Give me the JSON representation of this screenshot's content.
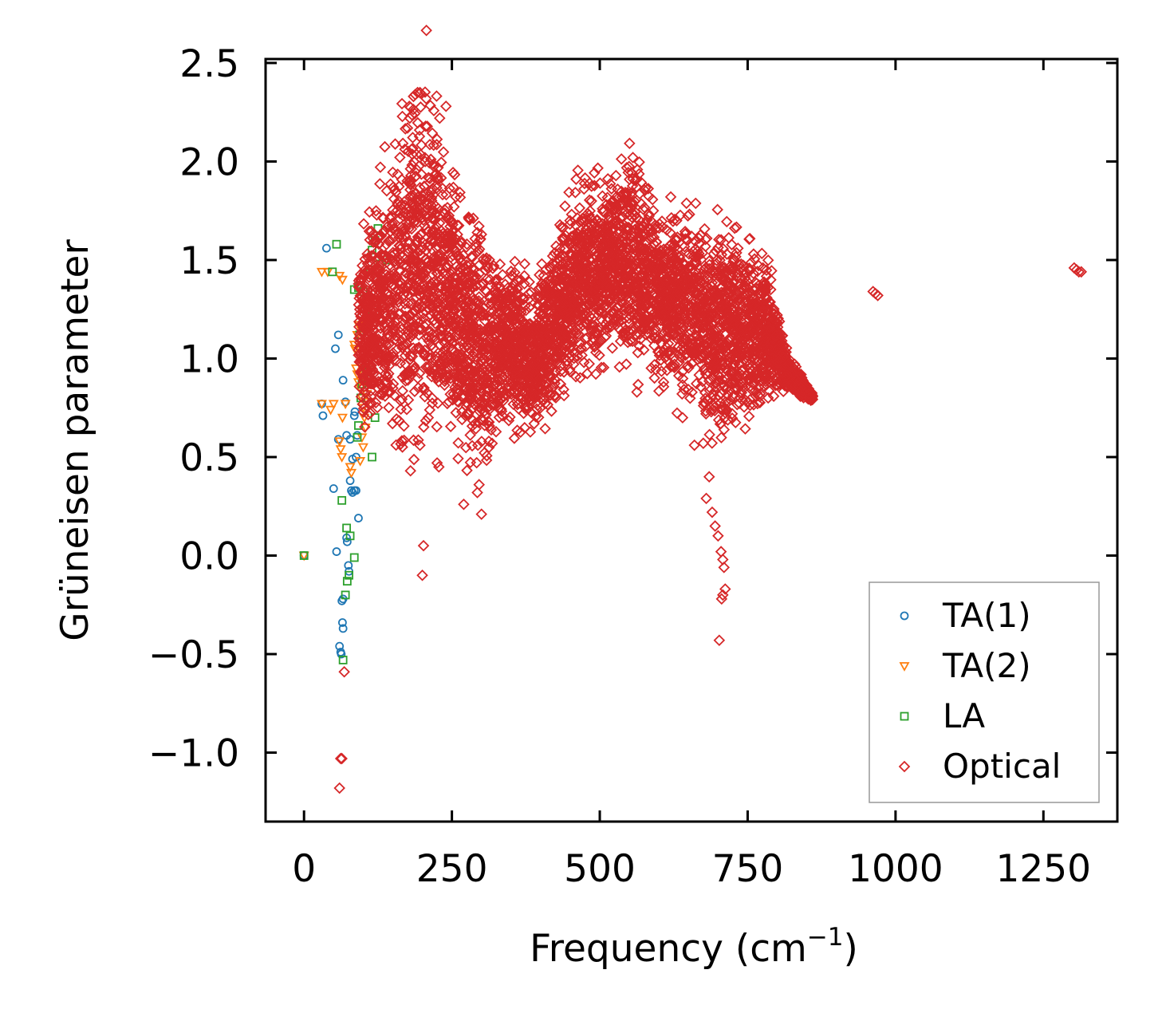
{
  "chart_data": {
    "type": "scatter",
    "title": "",
    "xlabel": "Frequency (cm",
    "xlabel_sup": "−1",
    "xlabel_close": ")",
    "ylabel": "Grüneisen parameter",
    "xlim": [
      -65,
      1375
    ],
    "ylim": [
      -1.35,
      2.52
    ],
    "xticks": [
      0,
      250,
      500,
      750,
      1000,
      1250
    ],
    "xtick_labels": [
      "0",
      "250",
      "500",
      "750",
      "1000",
      "1250"
    ],
    "yticks": [
      -1.0,
      -0.5,
      0.0,
      0.5,
      1.0,
      1.5,
      2.0,
      2.5
    ],
    "ytick_labels": [
      "−1.0",
      "−0.5",
      "0.0",
      "0.5",
      "1.0",
      "1.5",
      "2.0",
      "2.5"
    ],
    "grid": false,
    "legend": "lower-right",
    "series": [
      {
        "name": "TA(1)",
        "marker": "circle",
        "color": "#1f77b4",
        "points": [
          [
            0,
            0
          ],
          [
            38,
            1.56
          ],
          [
            53,
            1.05
          ],
          [
            58,
            1.12
          ],
          [
            30,
            0.77
          ],
          [
            32,
            0.71
          ],
          [
            58,
            0.59
          ],
          [
            66,
            0.89
          ],
          [
            50,
            0.34
          ],
          [
            55,
            0.02
          ],
          [
            78,
            0.38
          ],
          [
            80,
            0.33
          ],
          [
            82,
            0.32
          ],
          [
            85,
            0.33
          ],
          [
            88,
            0.33
          ],
          [
            70,
            0.78
          ],
          [
            72,
            0.61
          ],
          [
            78,
            0.59
          ],
          [
            85,
            0.71
          ],
          [
            86,
            0.73
          ],
          [
            72,
            0.09
          ],
          [
            73,
            0.07
          ],
          [
            75,
            -0.05
          ],
          [
            76,
            -0.08
          ],
          [
            66,
            -0.22
          ],
          [
            64,
            -0.23
          ],
          [
            65,
            -0.34
          ],
          [
            66,
            -0.37
          ],
          [
            60,
            -0.46
          ],
          [
            62,
            -0.49
          ],
          [
            63,
            -0.5
          ],
          [
            82,
            0.49
          ],
          [
            88,
            0.5
          ],
          [
            90,
            0.61
          ],
          [
            92,
            0.19
          ]
        ]
      },
      {
        "name": "TA(2)",
        "marker": "triangle-down",
        "color": "#ff7f0e",
        "points": [
          [
            0,
            0
          ],
          [
            30,
            1.44
          ],
          [
            40,
            1.44
          ],
          [
            60,
            1.42
          ],
          [
            65,
            1.4
          ],
          [
            30,
            0.77
          ],
          [
            45,
            0.74
          ],
          [
            50,
            0.77
          ],
          [
            65,
            0.7
          ],
          [
            70,
            0.77
          ],
          [
            85,
            1.07
          ],
          [
            86,
            1.05
          ],
          [
            90,
            1.12
          ],
          [
            92,
            1.17
          ],
          [
            88,
            0.95
          ],
          [
            90,
            0.92
          ],
          [
            92,
            0.88
          ],
          [
            95,
            0.85
          ],
          [
            98,
            0.8
          ],
          [
            100,
            0.75
          ],
          [
            102,
            0.7
          ],
          [
            104,
            0.65
          ],
          [
            98,
            0.6
          ],
          [
            100,
            0.55
          ],
          [
            95,
            0.48
          ],
          [
            60,
            0.58
          ],
          [
            62,
            0.54
          ],
          [
            64,
            0.5
          ],
          [
            78,
            0.45
          ],
          [
            80,
            0.42
          ],
          [
            104,
            0.88
          ],
          [
            106,
            0.82
          ],
          [
            108,
            0.78
          ]
        ]
      },
      {
        "name": "LA",
        "marker": "square",
        "color": "#2ca02c",
        "points": [
          [
            0,
            0
          ],
          [
            55,
            1.58
          ],
          [
            48,
            1.44
          ],
          [
            85,
            1.35
          ],
          [
            92,
            1.36
          ],
          [
            95,
            1.37
          ],
          [
            100,
            1.34
          ],
          [
            105,
            1.3
          ],
          [
            108,
            1.25
          ],
          [
            112,
            1.45
          ],
          [
            115,
            1.55
          ],
          [
            120,
            1.6
          ],
          [
            125,
            1.66
          ],
          [
            128,
            1.48
          ],
          [
            132,
            1.4
          ],
          [
            135,
            1.52
          ],
          [
            140,
            1.5
          ],
          [
            118,
            1.1
          ],
          [
            114,
            1.08
          ],
          [
            110,
            0.97
          ],
          [
            108,
            0.93
          ],
          [
            105,
            0.95
          ],
          [
            100,
            0.9
          ],
          [
            98,
            0.87
          ],
          [
            96,
            0.8
          ],
          [
            120,
            0.7
          ],
          [
            115,
            0.5
          ],
          [
            94,
            1.12
          ],
          [
            64,
            0.28
          ],
          [
            72,
            0.14
          ],
          [
            78,
            0.1
          ],
          [
            85,
            -0.01
          ],
          [
            76,
            -0.1
          ],
          [
            73,
            -0.13
          ],
          [
            70,
            -0.2
          ],
          [
            66,
            -0.53
          ],
          [
            90,
            0.6
          ],
          [
            92,
            0.66
          ]
        ]
      },
      {
        "name": "Optical",
        "marker": "diamond",
        "color": "#d62728",
        "band": [
          [
            92,
            1.15,
            0.5
          ],
          [
            120,
            1.2,
            0.8
          ],
          [
            150,
            1.3,
            1.0
          ],
          [
            180,
            1.45,
            1.2
          ],
          [
            200,
            1.5,
            1.3
          ],
          [
            230,
            1.4,
            1.0
          ],
          [
            260,
            1.2,
            0.9
          ],
          [
            300,
            1.0,
            0.8
          ],
          [
            340,
            1.1,
            0.5
          ],
          [
            380,
            1.0,
            0.5
          ],
          [
            410,
            1.1,
            0.5
          ],
          [
            440,
            1.3,
            0.6
          ],
          [
            470,
            1.4,
            0.6
          ],
          [
            500,
            1.45,
            0.6
          ],
          [
            530,
            1.5,
            0.55
          ],
          [
            552,
            1.5,
            0.8
          ],
          [
            580,
            1.4,
            0.6
          ],
          [
            620,
            1.3,
            0.6
          ],
          [
            660,
            1.25,
            0.6
          ],
          [
            700,
            1.15,
            0.8
          ],
          [
            740,
            1.15,
            0.6
          ],
          [
            780,
            1.15,
            0.5
          ],
          [
            800,
            1.05,
            0.3
          ],
          [
            820,
            0.92,
            0.12
          ],
          [
            860,
            0.8,
            0.03
          ]
        ],
        "points": [
          [
            185,
            2.33
          ],
          [
            188,
            2.34
          ],
          [
            192,
            2.35
          ],
          [
            196,
            2.35
          ],
          [
            178,
            2.28
          ],
          [
            175,
            2.17
          ],
          [
            240,
            2.28
          ],
          [
            205,
            2.0
          ],
          [
            300,
            1.63
          ],
          [
            460,
            1.91
          ],
          [
            483,
            1.89
          ],
          [
            556,
            2.02
          ],
          [
            620,
            1.82
          ],
          [
            630,
            1.7
          ],
          [
            715,
            1.53
          ],
          [
            760,
            1.53
          ],
          [
            962,
            1.34
          ],
          [
            966,
            1.33
          ],
          [
            970,
            1.32
          ],
          [
            1302,
            1.46
          ],
          [
            1306,
            1.45
          ],
          [
            1310,
            1.44
          ],
          [
            1314,
            1.44
          ],
          [
            373,
            1.48
          ],
          [
            402,
            1.48
          ],
          [
            405,
            1.42
          ],
          [
            360,
            1.4
          ],
          [
            325,
            1.4
          ],
          [
            180,
            0.43
          ],
          [
            225,
            0.47
          ],
          [
            228,
            0.45
          ],
          [
            210,
            0.7
          ],
          [
            270,
            0.26
          ],
          [
            293,
            0.32
          ],
          [
            296,
            0.36
          ],
          [
            300,
            0.21
          ],
          [
            202,
            0.05
          ],
          [
            200,
            -0.1
          ],
          [
            68,
            -0.59
          ],
          [
            62,
            -1.03
          ],
          [
            64,
            -1.03
          ],
          [
            60,
            -1.18
          ],
          [
            680,
            0.29
          ],
          [
            690,
            0.22
          ],
          [
            695,
            0.15
          ],
          [
            700,
            0.1
          ],
          [
            705,
            0.02
          ],
          [
            708,
            -0.02
          ],
          [
            710,
            -0.06
          ],
          [
            712,
            -0.17
          ],
          [
            708,
            -0.2
          ],
          [
            706,
            -0.22
          ],
          [
            702,
            -0.43
          ],
          [
            685,
            0.4
          ],
          [
            675,
            0.57
          ],
          [
            660,
            0.56
          ],
          [
            640,
            0.7
          ]
        ]
      }
    ]
  }
}
